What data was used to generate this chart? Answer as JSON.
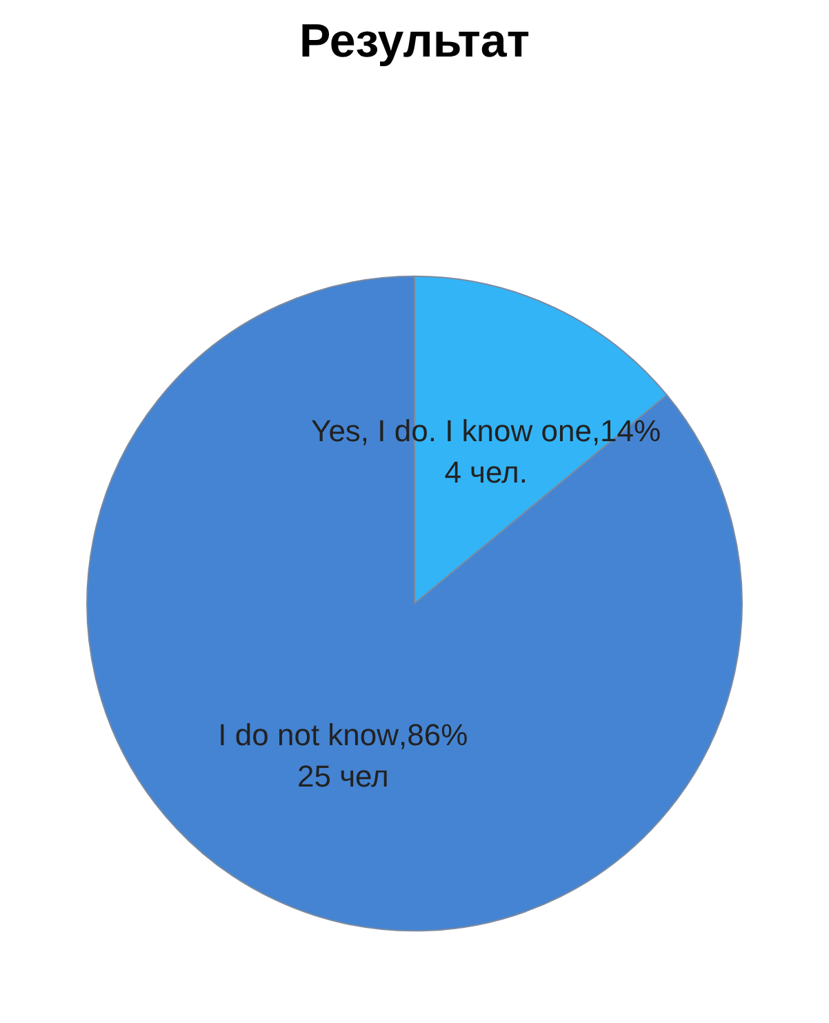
{
  "chart_data": {
    "type": "pie",
    "title": "Результат",
    "categories": [
      "Yes, I do. I know one",
      "I do not know"
    ],
    "values": [
      14,
      86
    ],
    "colors": [
      "#33b4f7",
      "#4584d3"
    ],
    "value_labels": [
      ",14%",
      ",86%"
    ],
    "legend": false,
    "annotations": [
      "4 чел.",
      "25 чел"
    ]
  }
}
